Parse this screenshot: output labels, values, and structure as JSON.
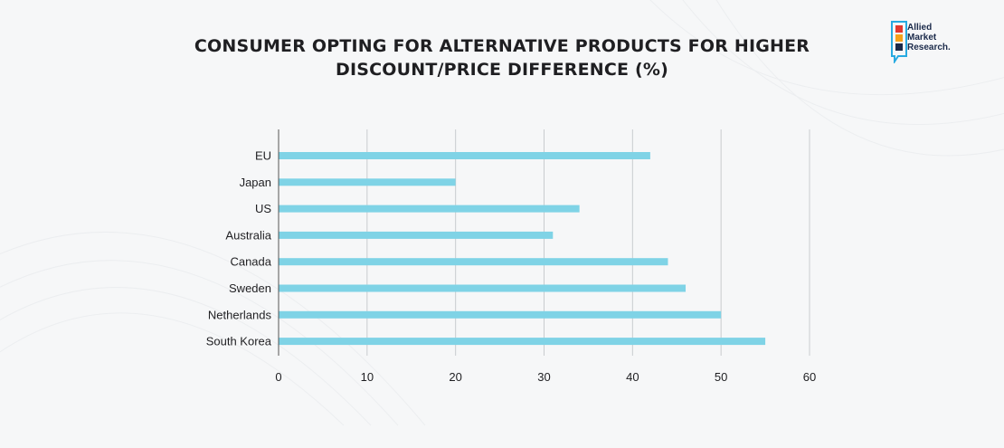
{
  "header": {
    "title_line1": "CONSUMER OPTING FOR ALTERNATIVE PRODUCTS FOR HIGHER",
    "title_line2": "DISCOUNT/PRICE DIFFERENCE (%)"
  },
  "logo": {
    "line1": "Allied",
    "line2": "Market",
    "line3": "Research.",
    "colors": [
      "#e2382f",
      "#f6a21a",
      "#1b2a4a",
      "#27aae1"
    ]
  },
  "chart_data": {
    "type": "bar",
    "orientation": "horizontal",
    "title": "CONSUMER OPTING FOR ALTERNATIVE PRODUCTS FOR HIGHER DISCOUNT/PRICE DIFFERENCE (%)",
    "categories": [
      "EU",
      "Japan",
      "US",
      "Australia",
      "Canada",
      "Sweden",
      "Netherlands",
      "South Korea"
    ],
    "values": [
      42,
      20,
      34,
      31,
      44,
      46,
      50,
      55
    ],
    "xlim": [
      0,
      60
    ],
    "xticks": [
      "0",
      "10",
      "20",
      "30",
      "40",
      "50",
      "60"
    ],
    "xlabel": "",
    "ylabel": "",
    "grid": "vertical",
    "bar_color": "#7fd3e6",
    "grid_color": "#c9cccf",
    "axis_color": "#555555"
  }
}
